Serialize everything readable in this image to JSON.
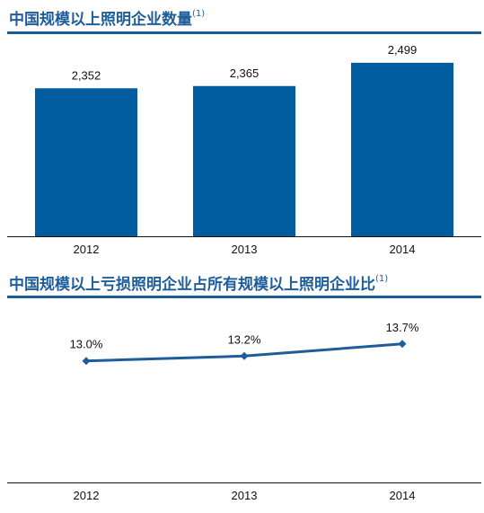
{
  "charts": {
    "bar": {
      "title": "中国规模以上照明企业数量",
      "footnote": "(1)"
    },
    "line": {
      "title": "中国规模以上亏损照明企业占所有规模以上照明企业比",
      "footnote": "(1)"
    }
  },
  "colors": {
    "bar": "#005b9f",
    "line": "#1f5d9a",
    "title": "#1f5d9a",
    "axis": "#111111"
  },
  "chart_data": [
    {
      "type": "bar",
      "title": "中国规模以上照明企业数量",
      "categories": [
        "2012",
        "2013",
        "2014"
      ],
      "values": [
        2352,
        2365,
        2499
      ],
      "value_labels": [
        "2,352",
        "2,365",
        "2,499"
      ],
      "ylim": [
        1500,
        2550
      ],
      "grid": false,
      "xlabel": "",
      "ylabel": ""
    },
    {
      "type": "line",
      "title": "中国规模以上亏损照明企业占所有规模以上照明企业比",
      "categories": [
        "2012",
        "2013",
        "2014"
      ],
      "values": [
        13.0,
        13.2,
        13.7
      ],
      "value_labels": [
        "13.0%",
        "13.2%",
        "13.7%"
      ],
      "ylim": [
        8.0,
        14.8
      ],
      "grid": false,
      "xlabel": "",
      "ylabel": ""
    }
  ]
}
